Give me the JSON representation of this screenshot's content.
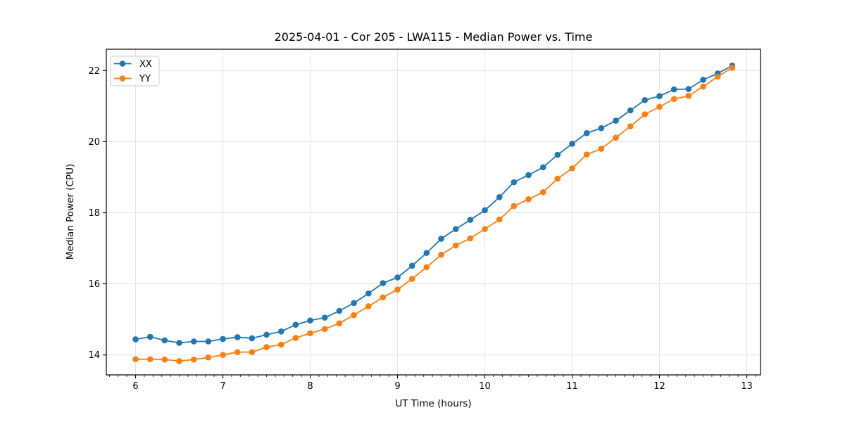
{
  "title": "2025-04-01 - Cor 205 - LWA115 - Median Power vs. Time",
  "xlabel": "UT Time (hours)",
  "ylabel": "Median Power (CPU)",
  "legend": {
    "position": "upper left",
    "entries": [
      {
        "label": "XX",
        "color": "#1f77b4"
      },
      {
        "label": "YY",
        "color": "#ff7f0e"
      }
    ]
  },
  "colors": {
    "series_xx": "#1f77b4",
    "series_yy": "#ff7f0e",
    "grid": "#e3e3e3",
    "spine": "#000000",
    "legend_border": "#cccccc"
  },
  "chart_data": {
    "type": "line",
    "title": "2025-04-01 - Cor 205 - LWA115 - Median Power vs. Time",
    "xlabel": "UT Time (hours)",
    "ylabel": "Median Power (CPU)",
    "grid": true,
    "legend_position": "upper left",
    "marker": "o",
    "xlim": [
      5.665,
      13.157
    ],
    "ylim": [
      13.44,
      22.6
    ],
    "xticks": [
      6,
      7,
      8,
      9,
      10,
      11,
      12,
      13
    ],
    "yticks": [
      14,
      16,
      18,
      20,
      22
    ],
    "minor_xtick_step": 0.1,
    "x": [
      6.0,
      6.167,
      6.333,
      6.5,
      6.667,
      6.833,
      7.0,
      7.167,
      7.333,
      7.5,
      7.667,
      7.833,
      8.0,
      8.167,
      8.333,
      8.5,
      8.667,
      8.833,
      9.0,
      9.167,
      9.333,
      9.5,
      9.667,
      9.833,
      10.0,
      10.167,
      10.333,
      10.5,
      10.667,
      10.833,
      11.0,
      11.167,
      11.333,
      11.5,
      11.667,
      11.833,
      12.0,
      12.167,
      12.333,
      12.5,
      12.667,
      12.833
    ],
    "series": [
      {
        "name": "XX",
        "color": "#1f77b4",
        "values": [
          14.44,
          14.51,
          14.41,
          14.34,
          14.38,
          14.38,
          14.45,
          14.5,
          14.47,
          14.57,
          14.66,
          14.85,
          14.97,
          15.05,
          15.24,
          15.46,
          15.73,
          16.02,
          16.18,
          16.51,
          16.87,
          17.27,
          17.54,
          17.8,
          18.07,
          18.44,
          18.86,
          19.06,
          19.28,
          19.63,
          19.94,
          20.24,
          20.38,
          20.59,
          20.88,
          21.17,
          21.28,
          21.47,
          21.48,
          21.74,
          21.92,
          22.14
        ]
      },
      {
        "name": "YY",
        "color": "#ff7f0e",
        "values": [
          13.88,
          13.88,
          13.87,
          13.83,
          13.87,
          13.93,
          14.0,
          14.08,
          14.08,
          14.22,
          14.29,
          14.48,
          14.61,
          14.73,
          14.89,
          15.12,
          15.37,
          15.62,
          15.84,
          16.14,
          16.47,
          16.82,
          17.08,
          17.28,
          17.54,
          17.81,
          18.19,
          18.38,
          18.58,
          18.96,
          19.25,
          19.64,
          19.8,
          20.11,
          20.43,
          20.77,
          20.98,
          21.2,
          21.29,
          21.55,
          21.83,
          22.08
        ]
      }
    ]
  }
}
